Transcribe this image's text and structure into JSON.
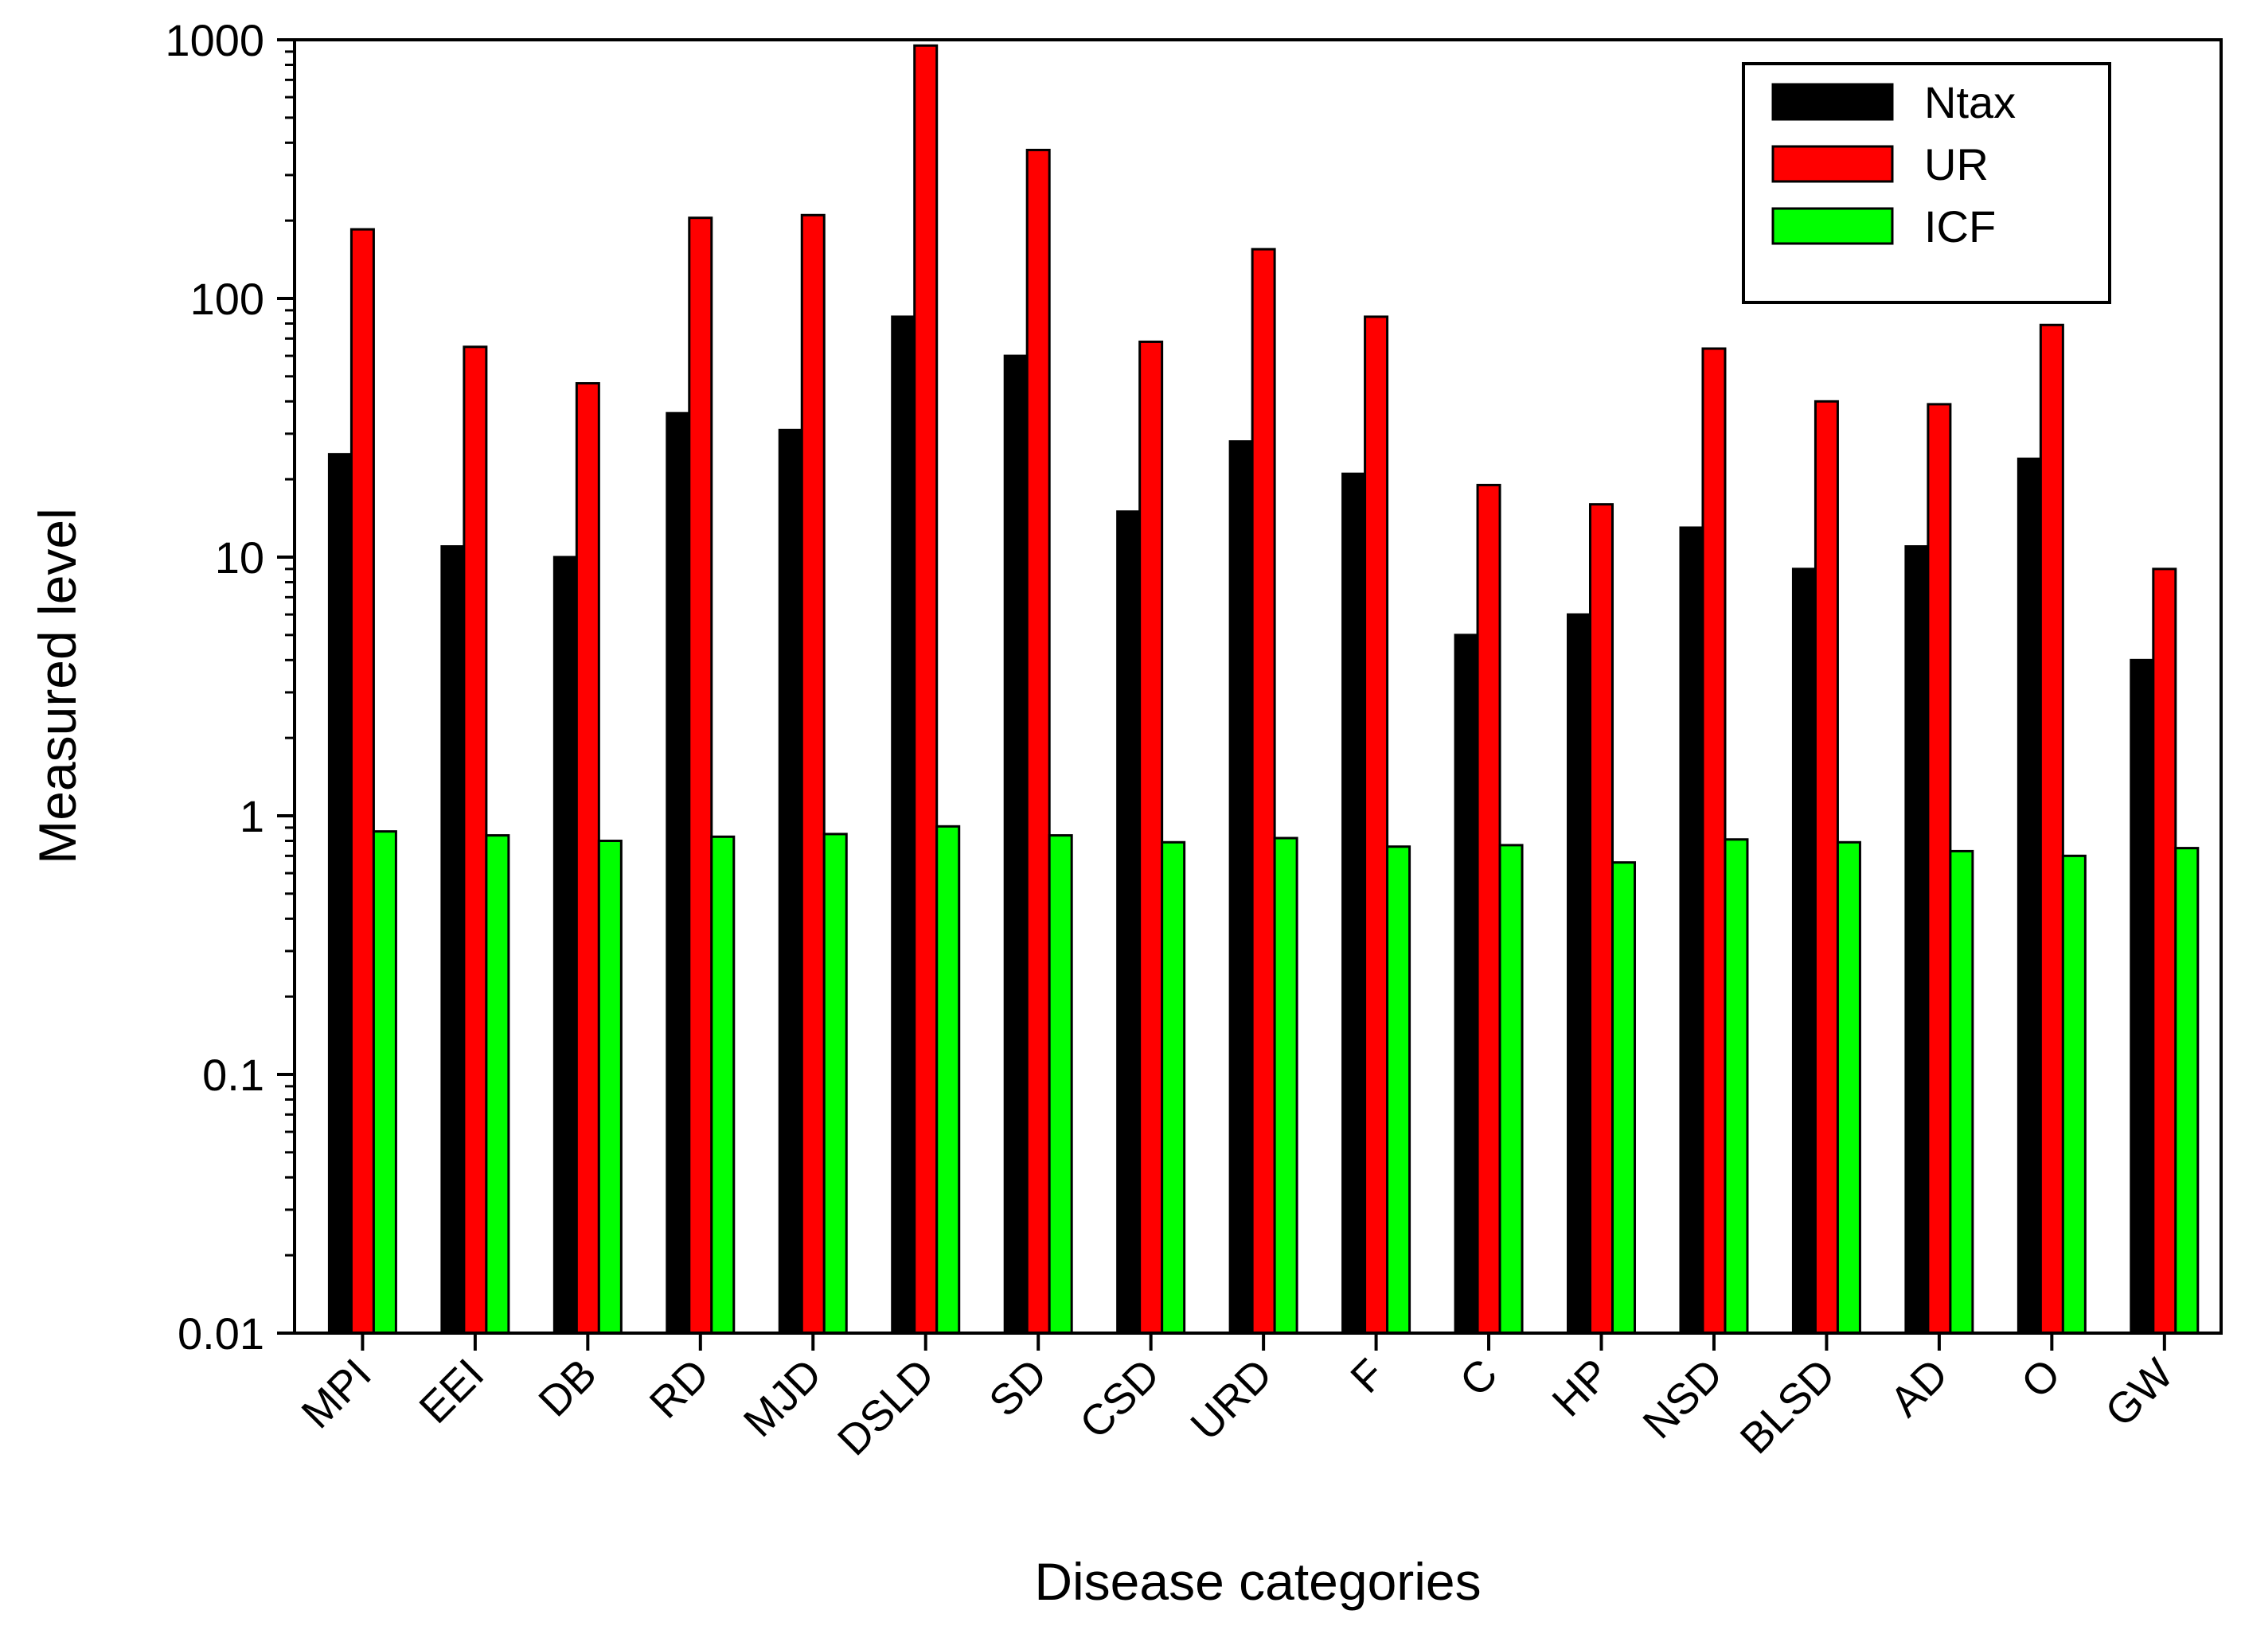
{
  "chart_data": {
    "type": "bar",
    "yscale": "log",
    "title": "",
    "xlabel": "Disease categories",
    "ylabel": "Measured level",
    "ylim": [
      0.01,
      1000
    ],
    "yticks": [
      "0.01",
      "0.1",
      "1",
      "10",
      "100",
      "1000"
    ],
    "legend_position": "top-right",
    "categories": [
      "MPI",
      "EEI",
      "DB",
      "RD",
      "MJD",
      "DSLD",
      "SD",
      "CSD",
      "URD",
      "F",
      "C",
      "HP",
      "NSD",
      "BLSD",
      "AD",
      "O",
      "GW"
    ],
    "series": [
      {
        "name": "Ntax",
        "color": "#000000",
        "values": [
          25,
          11,
          10,
          36,
          31,
          85,
          60,
          15,
          28,
          21,
          5,
          6,
          13,
          9,
          11,
          24,
          4
        ]
      },
      {
        "name": "UR",
        "color": "#ff0000",
        "values": [
          185,
          65,
          47,
          205,
          210,
          950,
          375,
          68,
          155,
          85,
          19,
          16,
          64,
          40,
          39,
          79,
          9
        ]
      },
      {
        "name": "ICF",
        "color": "#00ff00",
        "values": [
          0.87,
          0.84,
          0.8,
          0.83,
          0.85,
          0.91,
          0.84,
          0.79,
          0.82,
          0.76,
          0.77,
          0.66,
          0.81,
          0.79,
          0.73,
          0.7,
          0.75
        ]
      }
    ]
  }
}
